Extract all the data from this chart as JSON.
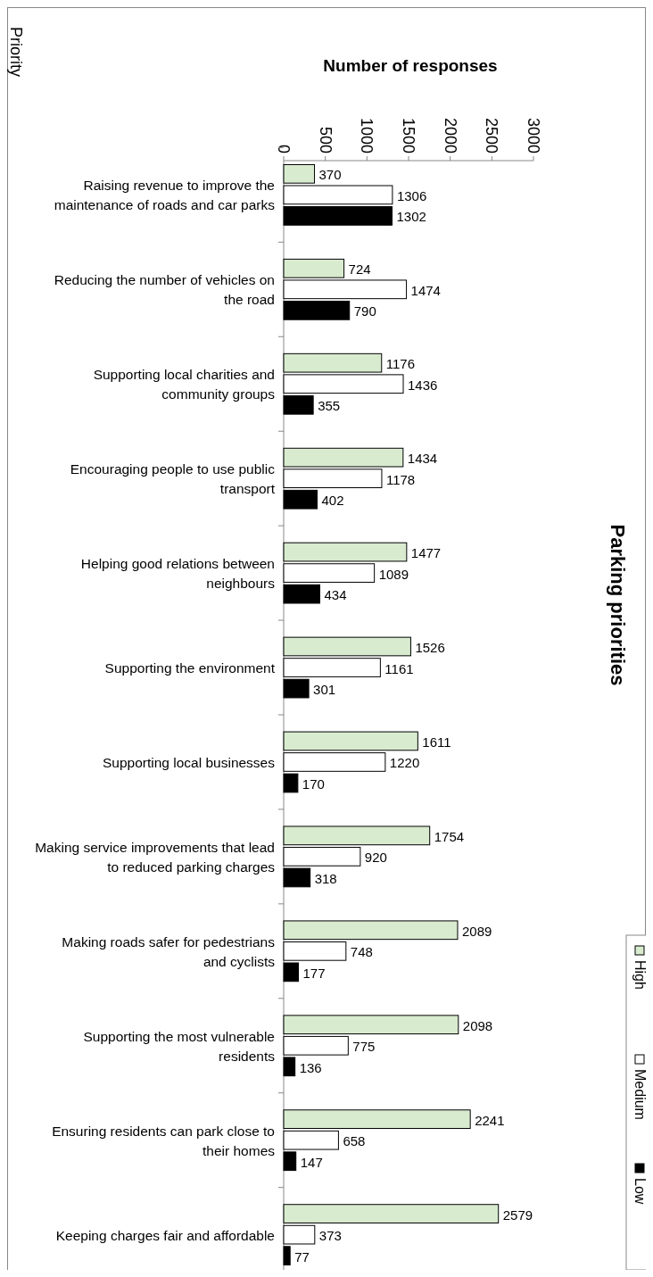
{
  "chart_data": {
    "type": "bar",
    "orientation": "horizontal",
    "title": "Parking priorities",
    "xlabel": "Number of responses",
    "ylabel": "Priority",
    "categories": [
      "Raising revenue to improve the maintenance of roads and car parks",
      "Reducing the number of vehicles on the road",
      "Supporting local charities and community groups",
      "Encouraging people to use public transport",
      "Helping good relations between neighbours",
      "Supporting the environment",
      "Supporting local businesses",
      "Making service improvements that lead to reduced parking charges",
      "Making roads safer for pedestrians and cyclists",
      "Supporting the most vulnerable residents",
      "Ensuring residents can park close to their homes",
      "Keeping charges fair and affordable"
    ],
    "series": [
      {
        "name": "High",
        "color": "#d8ebcf",
        "values": [
          370,
          724,
          1176,
          1434,
          1477,
          1526,
          1611,
          1754,
          2089,
          2098,
          2241,
          2579
        ]
      },
      {
        "name": "Medium",
        "color": "#ffffff",
        "values": [
          1306,
          1474,
          1436,
          1178,
          1089,
          1161,
          1220,
          920,
          748,
          775,
          658,
          373
        ]
      },
      {
        "name": "Low",
        "color": "#000000",
        "values": [
          1302,
          790,
          355,
          402,
          434,
          301,
          170,
          318,
          177,
          136,
          147,
          77
        ]
      }
    ],
    "xlim": [
      0,
      3000
    ],
    "xticks": [
      0,
      500,
      1000,
      1500,
      2000,
      2500,
      3000
    ],
    "data_labels": true,
    "legend": "bottom right"
  }
}
